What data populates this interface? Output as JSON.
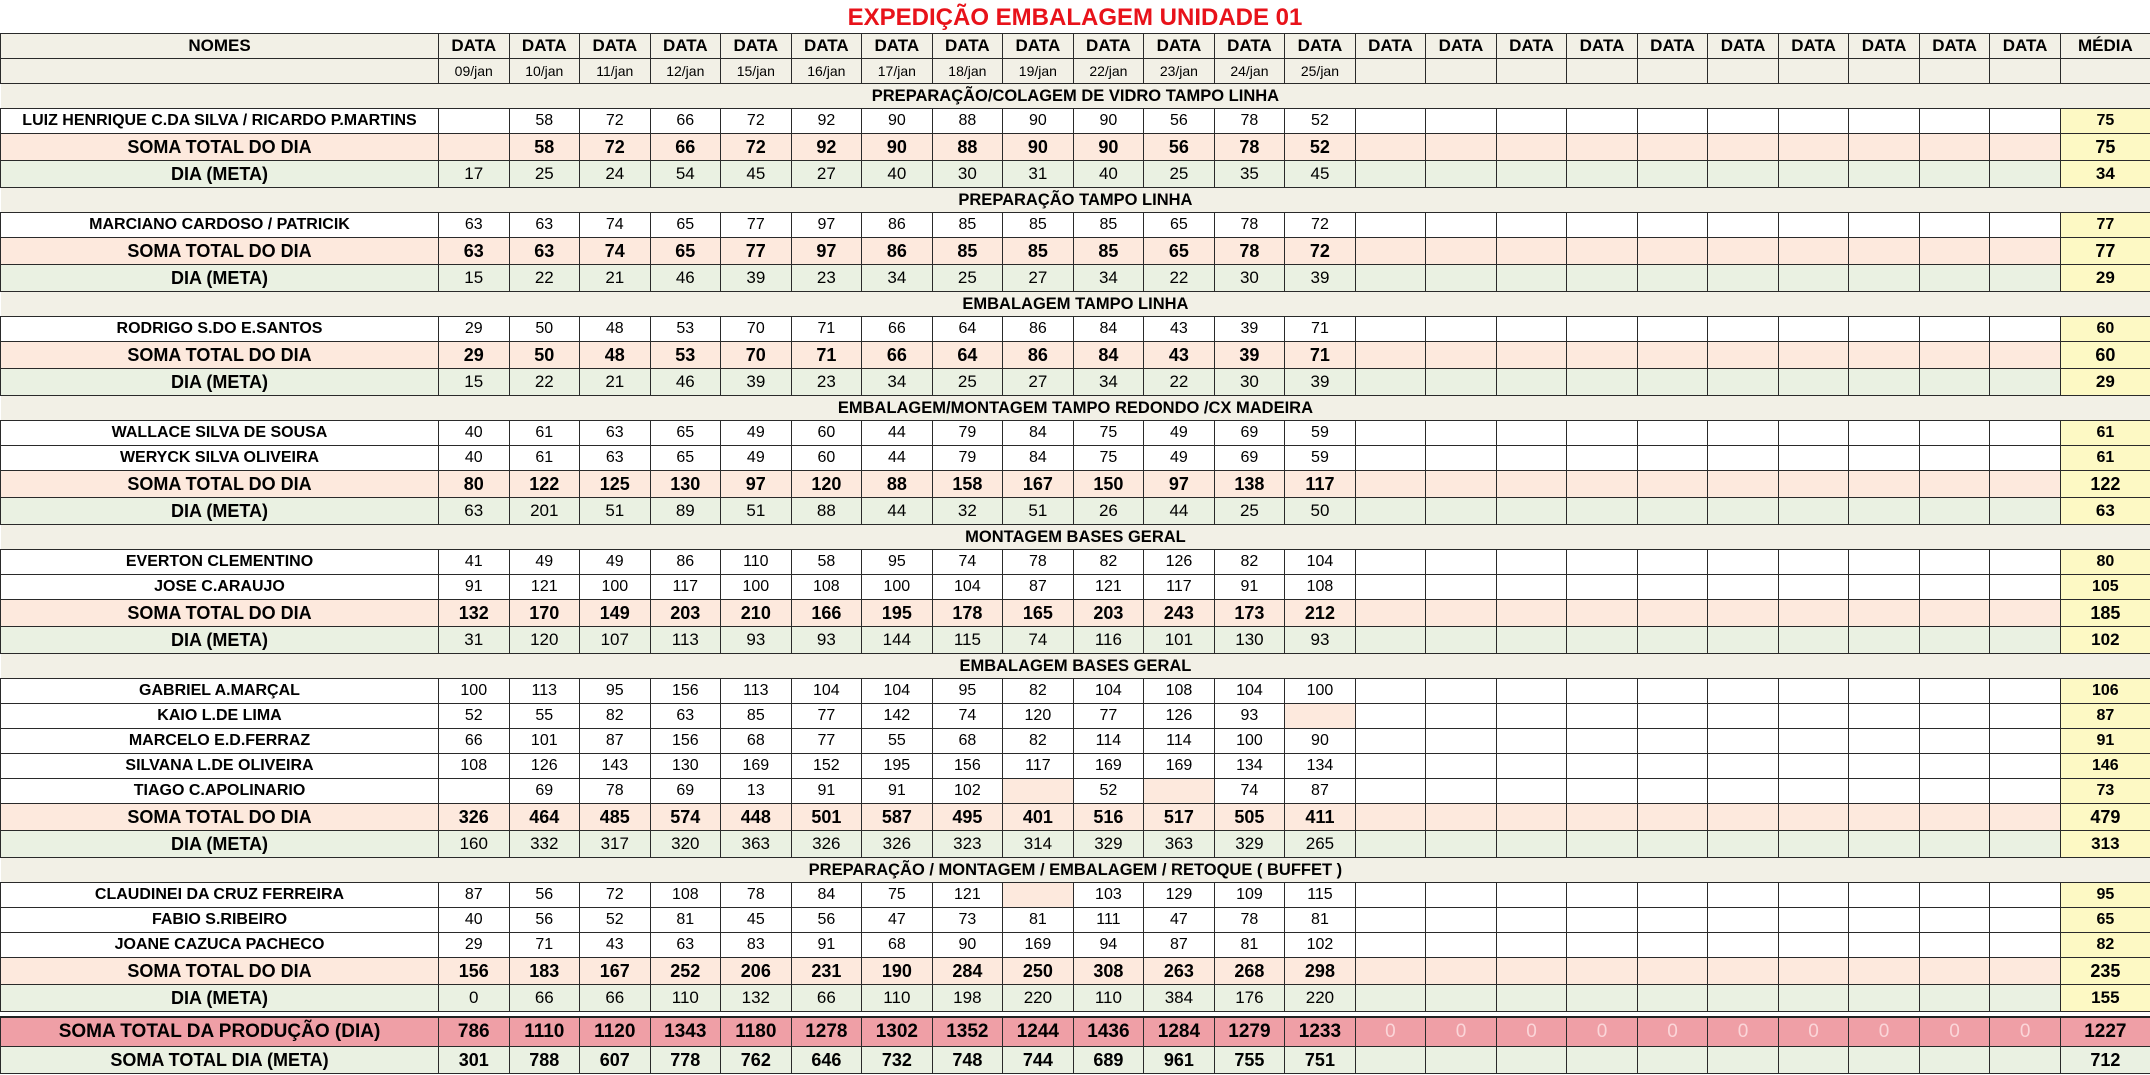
{
  "title": "EXPEDIÇÃO EMBALAGEM UNIDADE 01",
  "header": {
    "names_label": "NOMES",
    "data_label": "DATA",
    "avg_label": "MÉDIA",
    "dates": [
      "09/jan",
      "10/jan",
      "11/jan",
      "12/jan",
      "15/jan",
      "16/jan",
      "17/jan",
      "18/jan",
      "19/jan",
      "22/jan",
      "23/jan",
      "24/jan",
      "25/jan",
      "",
      "",
      "",
      "",
      "",
      "",
      "",
      "",
      "",
      ""
    ]
  },
  "sections": [
    {
      "title": "PREPARAÇÃO/COLAGEM DE VIDRO TAMPO LINHA",
      "people": [
        {
          "name": "LUIZ HENRIQUE C.DA SILVA / RICARDO P.MARTINS",
          "values": [
            "",
            "58",
            "72",
            "66",
            "72",
            "92",
            "90",
            "88",
            "90",
            "90",
            "56",
            "78",
            "52"
          ],
          "avg": "75"
        }
      ],
      "soma": {
        "label": "SOMA TOTAL DO DIA",
        "values": [
          "",
          "58",
          "72",
          "66",
          "72",
          "92",
          "90",
          "88",
          "90",
          "90",
          "56",
          "78",
          "52"
        ],
        "avg": "75"
      },
      "meta": {
        "label": "DIA (META)",
        "values": [
          "17",
          "25",
          "24",
          "54",
          "45",
          "27",
          "40",
          "30",
          "31",
          "40",
          "25",
          "35",
          "45"
        ],
        "avg": "34"
      }
    },
    {
      "title": "PREPARAÇÃO TAMPO LINHA",
      "people": [
        {
          "name": "MARCIANO CARDOSO / PATRICIK",
          "values": [
            "63",
            "63",
            "74",
            "65",
            "77",
            "97",
            "86",
            "85",
            "85",
            "85",
            "65",
            "78",
            "72"
          ],
          "avg": "77"
        }
      ],
      "soma": {
        "label": "SOMA TOTAL DO DIA",
        "values": [
          "63",
          "63",
          "74",
          "65",
          "77",
          "97",
          "86",
          "85",
          "85",
          "85",
          "65",
          "78",
          "72"
        ],
        "avg": "77"
      },
      "meta": {
        "label": "DIA (META)",
        "values": [
          "15",
          "22",
          "21",
          "46",
          "39",
          "23",
          "34",
          "25",
          "27",
          "34",
          "22",
          "30",
          "39"
        ],
        "avg": "29"
      }
    },
    {
      "title": "EMBALAGEM TAMPO LINHA",
      "people": [
        {
          "name": "RODRIGO S.DO E.SANTOS",
          "values": [
            "29",
            "50",
            "48",
            "53",
            "70",
            "71",
            "66",
            "64",
            "86",
            "84",
            "43",
            "39",
            "71"
          ],
          "avg": "60"
        }
      ],
      "soma": {
        "label": "SOMA TOTAL DO DIA",
        "values": [
          "29",
          "50",
          "48",
          "53",
          "70",
          "71",
          "66",
          "64",
          "86",
          "84",
          "43",
          "39",
          "71"
        ],
        "avg": "60"
      },
      "meta": {
        "label": "DIA (META)",
        "values": [
          "15",
          "22",
          "21",
          "46",
          "39",
          "23",
          "34",
          "25",
          "27",
          "34",
          "22",
          "30",
          "39"
        ],
        "avg": "29"
      }
    },
    {
      "title": "EMBALAGEM/MONTAGEM TAMPO REDONDO /CX MADEIRA",
      "people": [
        {
          "name": "WALLACE SILVA DE SOUSA",
          "values": [
            "40",
            "61",
            "63",
            "65",
            "49",
            "60",
            "44",
            "79",
            "84",
            "75",
            "49",
            "69",
            "59"
          ],
          "avg": "61"
        },
        {
          "name": "WERYCK SILVA OLIVEIRA",
          "values": [
            "40",
            "61",
            "63",
            "65",
            "49",
            "60",
            "44",
            "79",
            "84",
            "75",
            "49",
            "69",
            "59"
          ],
          "avg": "61"
        }
      ],
      "soma": {
        "label": "SOMA TOTAL DO DIA",
        "values": [
          "80",
          "122",
          "125",
          "130",
          "97",
          "120",
          "88",
          "158",
          "167",
          "150",
          "97",
          "138",
          "117"
        ],
        "avg": "122"
      },
      "meta": {
        "label": "DIA (META)",
        "values": [
          "63",
          "201",
          "51",
          "89",
          "51",
          "88",
          "44",
          "32",
          "51",
          "26",
          "44",
          "25",
          "50"
        ],
        "avg": "63"
      }
    },
    {
      "title": "MONTAGEM BASES GERAL",
      "people": [
        {
          "name": "EVERTON CLEMENTINO",
          "values": [
            "41",
            "49",
            "49",
            "86",
            "110",
            "58",
            "95",
            "74",
            "78",
            "82",
            "126",
            "82",
            "104"
          ],
          "avg": "80"
        },
        {
          "name": "JOSE C.ARAUJO",
          "values": [
            "91",
            "121",
            "100",
            "117",
            "100",
            "108",
            "100",
            "104",
            "87",
            "121",
            "117",
            "91",
            "108"
          ],
          "avg": "105"
        }
      ],
      "soma": {
        "label": "SOMA TOTAL DO DIA",
        "values": [
          "132",
          "170",
          "149",
          "203",
          "210",
          "166",
          "195",
          "178",
          "165",
          "203",
          "243",
          "173",
          "212"
        ],
        "avg": "185"
      },
      "meta": {
        "label": "DIA (META)",
        "values": [
          "31",
          "120",
          "107",
          "113",
          "93",
          "93",
          "144",
          "115",
          "74",
          "116",
          "101",
          "130",
          "93"
        ],
        "avg": "102"
      }
    },
    {
      "title": "EMBALAGEM BASES GERAL",
      "people": [
        {
          "name": "GABRIEL A.MARÇAL",
          "values": [
            "100",
            "113",
            "95",
            "156",
            "113",
            "104",
            "104",
            "95",
            "82",
            "104",
            "108",
            "104",
            "100"
          ],
          "avg": "106"
        },
        {
          "name": "KAIO L.DE LIMA",
          "values": [
            "52",
            "55",
            "82",
            "63",
            "85",
            "77",
            "142",
            "74",
            "120",
            "77",
            "126",
            "93",
            ""
          ],
          "avg": "87",
          "pink": [
            12
          ]
        },
        {
          "name": "MARCELO E.D.FERRAZ",
          "values": [
            "66",
            "101",
            "87",
            "156",
            "68",
            "77",
            "55",
            "68",
            "82",
            "114",
            "114",
            "100",
            "90"
          ],
          "avg": "91"
        },
        {
          "name": "SILVANA L.DE OLIVEIRA",
          "values": [
            "108",
            "126",
            "143",
            "130",
            "169",
            "152",
            "195",
            "156",
            "117",
            "169",
            "169",
            "134",
            "134"
          ],
          "avg": "146"
        },
        {
          "name": "TIAGO C.APOLINARIO",
          "values": [
            "",
            "69",
            "78",
            "69",
            "13",
            "91",
            "91",
            "102",
            "",
            "52",
            "",
            "74",
            "87"
          ],
          "avg": "73",
          "pink": [
            8,
            10
          ]
        }
      ],
      "soma": {
        "label": "SOMA TOTAL DO DIA",
        "values": [
          "326",
          "464",
          "485",
          "574",
          "448",
          "501",
          "587",
          "495",
          "401",
          "516",
          "517",
          "505",
          "411"
        ],
        "avg": "479"
      },
      "meta": {
        "label": "DIA (META)",
        "values": [
          "160",
          "332",
          "317",
          "320",
          "363",
          "326",
          "326",
          "323",
          "314",
          "329",
          "363",
          "329",
          "265"
        ],
        "avg": "313"
      }
    },
    {
      "title": "PREPARAÇÃO / MONTAGEM / EMBALAGEM / RETOQUE  ( BUFFET )",
      "people": [
        {
          "name": "CLAUDINEI DA CRUZ FERREIRA",
          "values": [
            "87",
            "56",
            "72",
            "108",
            "78",
            "84",
            "75",
            "121",
            "",
            "103",
            "129",
            "109",
            "115"
          ],
          "avg": "95",
          "pink": [
            8
          ]
        },
        {
          "name": "FABIO S.RIBEIRO",
          "values": [
            "40",
            "56",
            "52",
            "81",
            "45",
            "56",
            "47",
            "73",
            "81",
            "111",
            "47",
            "78",
            "81"
          ],
          "avg": "65"
        },
        {
          "name": "JOANE CAZUCA PACHECO",
          "values": [
            "29",
            "71",
            "43",
            "63",
            "83",
            "91",
            "68",
            "90",
            "169",
            "94",
            "87",
            "81",
            "102"
          ],
          "avg": "82"
        }
      ],
      "soma": {
        "label": "SOMA TOTAL DO DIA",
        "values": [
          "156",
          "183",
          "167",
          "252",
          "206",
          "231",
          "190",
          "284",
          "250",
          "308",
          "263",
          "268",
          "298"
        ],
        "avg": "235"
      },
      "meta": {
        "label": "DIA (META)",
        "values": [
          "0",
          "66",
          "66",
          "110",
          "132",
          "66",
          "110",
          "198",
          "220",
          "110",
          "384",
          "176",
          "220"
        ],
        "avg": "155"
      }
    }
  ],
  "grand_total": {
    "label": "SOMA TOTAL DA PRODUÇÃO (DIA)",
    "values": [
      "786",
      "1110",
      "1120",
      "1343",
      "1180",
      "1278",
      "1302",
      "1352",
      "1244",
      "1436",
      "1284",
      "1279",
      "1233",
      "0",
      "0",
      "0",
      "0",
      "0",
      "0",
      "0",
      "0",
      "0",
      "0"
    ],
    "avg": "1227"
  },
  "grand_meta": {
    "label": "SOMA TOTAL DIA (META)",
    "values": [
      "301",
      "788",
      "607",
      "778",
      "762",
      "646",
      "732",
      "748",
      "744",
      "689",
      "961",
      "755",
      "751",
      "",
      "",
      "",
      "",
      "",
      "",
      "",
      "",
      "",
      ""
    ],
    "avg": "712"
  },
  "colors": {
    "title": "#e8121a",
    "soma_row": "#fde9dd",
    "meta_row": "#eaf1e2",
    "avg_cell": "#fdf9c4",
    "grand_row": "#ef9fa6"
  }
}
